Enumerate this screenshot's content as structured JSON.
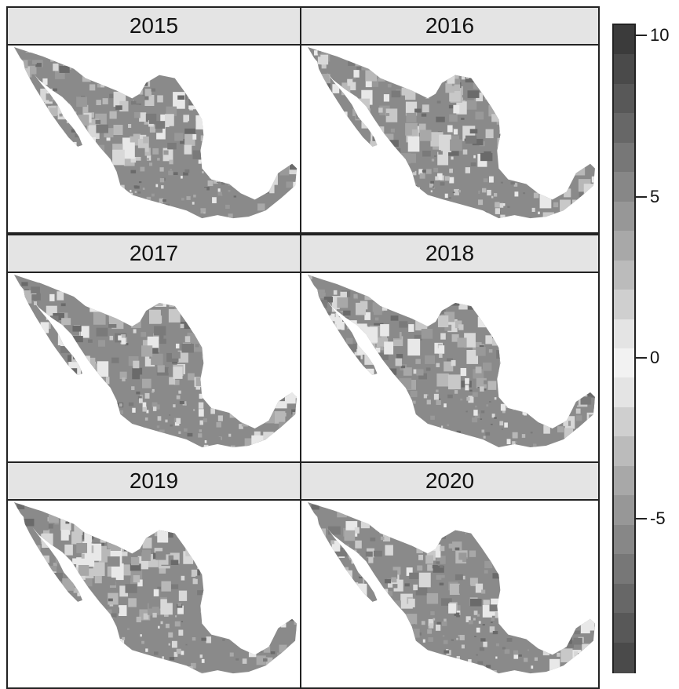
{
  "panels": [
    {
      "year": "2015"
    },
    {
      "year": "2016"
    },
    {
      "year": "2017"
    },
    {
      "year": "2018"
    },
    {
      "year": "2019"
    },
    {
      "year": "2020"
    }
  ],
  "colorbar": {
    "range": [
      -9,
      10
    ],
    "tick_labels": [
      "10",
      "5",
      "0",
      "-5"
    ],
    "ticks": [
      10,
      5,
      0,
      -5
    ],
    "scale_colors": [
      "#3b3b3b",
      "#4a4a4a",
      "#585858",
      "#676767",
      "#777777",
      "#878787",
      "#979797",
      "#a8a8a8",
      "#bbbbbb",
      "#cfcfcf",
      "#e4e4e4",
      "#f2f2f2",
      "#e4e4e4",
      "#cfcfcf",
      "#bbbbbb",
      "#a8a8a8",
      "#979797",
      "#878787",
      "#777777",
      "#676767",
      "#585858",
      "#4a4a4a"
    ]
  },
  "map": {
    "fill_color": "#8a8a8a"
  }
}
